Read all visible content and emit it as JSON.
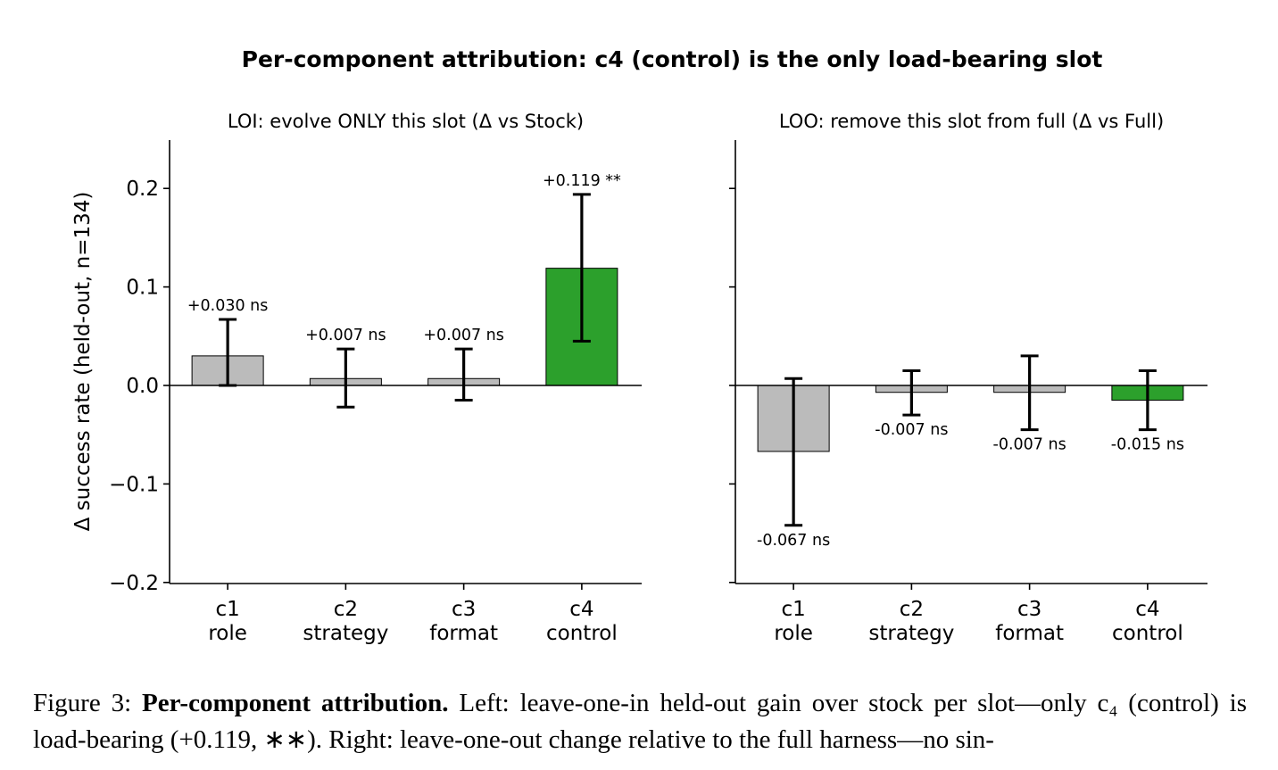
{
  "figure": {
    "suptitle": "Per-component attribution: c4 (control) is the only load-bearing slot",
    "ylabel": "Δ success rate (held-out, n=134)"
  },
  "chart_data": [
    {
      "type": "bar",
      "title": "LOI: evolve ONLY this slot (Δ vs Stock)",
      "ylabel": "Δ success rate (held-out, n=134)",
      "ylim": [
        -0.2,
        0.25
      ],
      "yticks": [
        "0.2",
        "0.1",
        "0.0",
        "−0.1",
        "−0.2"
      ],
      "yticks_values": [
        0.2,
        0.1,
        0.0,
        -0.1,
        -0.2
      ],
      "categories": [
        "c1",
        "c2",
        "c3",
        "c4"
      ],
      "category_sublabels": [
        "role",
        "strategy",
        "format",
        "control"
      ],
      "values": [
        0.03,
        0.007,
        0.007,
        0.119
      ],
      "ci_low": [
        0.0,
        -0.022,
        -0.015,
        0.045
      ],
      "ci_high": [
        0.067,
        0.037,
        0.037,
        0.194
      ],
      "labels": [
        "+0.030 ns",
        "+0.007 ns",
        "+0.007 ns",
        "+0.119 **"
      ],
      "colors": [
        "#bbbbbb",
        "#bbbbbb",
        "#bbbbbb",
        "#2ca02c"
      ],
      "grid": false
    },
    {
      "type": "bar",
      "title": "LOO: remove this slot from full (Δ vs Full)",
      "ylim": [
        -0.2,
        0.25
      ],
      "categories": [
        "c1",
        "c2",
        "c3",
        "c4"
      ],
      "category_sublabels": [
        "role",
        "strategy",
        "format",
        "control"
      ],
      "values": [
        -0.067,
        -0.007,
        -0.007,
        -0.015
      ],
      "ci_low": [
        -0.142,
        -0.03,
        -0.045,
        -0.045
      ],
      "ci_high": [
        0.007,
        0.015,
        0.03,
        0.015
      ],
      "labels": [
        "-0.067 ns",
        "-0.007 ns",
        "-0.007 ns",
        "-0.015 ns"
      ],
      "colors": [
        "#bbbbbb",
        "#bbbbbb",
        "#bbbbbb",
        "#2ca02c"
      ],
      "grid": false
    }
  ],
  "caption": {
    "prefix": "Figure 3: ",
    "bold": "Per-component attribution.",
    "text": " Left: leave-one-in held-out gain over stock per slot—only c₄ (control) is load-bearing (+0.119, ∗∗). Right: leave-one-out change relative to the full harness—no sin-"
  }
}
